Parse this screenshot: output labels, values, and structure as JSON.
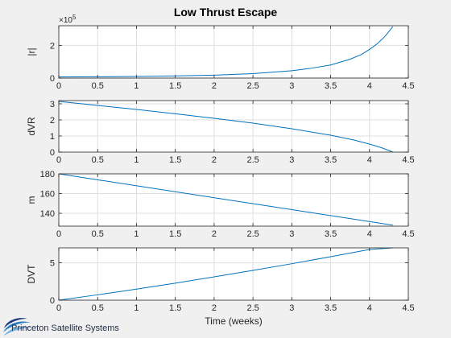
{
  "figure": {
    "title": "Low Thrust Escape",
    "background": "#f0f0f0",
    "line_color": "#0072bd",
    "grid_color": "#dfdfdf"
  },
  "logo": {
    "text": "Princeton Satellite Systems",
    "colors": [
      "#1f3a7a",
      "#2a7fc4",
      "#6fb3e0"
    ]
  },
  "chart_data": [
    {
      "type": "line",
      "title": "Low Thrust Escape",
      "ylabel": "|r|",
      "xlabel": "",
      "y_exponent_label": "×10",
      "y_exponent_power": "5",
      "xlim": [
        0,
        4.5
      ],
      "ylim": [
        0,
        3.2
      ],
      "xticks": [
        0,
        0.5,
        1,
        1.5,
        2,
        2.5,
        3,
        3.5,
        4,
        4.5
      ],
      "xtick_labels": [
        "0",
        "0.5",
        "1",
        "1.5",
        "2",
        "2.5",
        "3",
        "3.5",
        "4",
        "4.5"
      ],
      "yticks": [
        0,
        2
      ],
      "ytick_labels": [
        "0",
        "2"
      ],
      "grid": true,
      "series": [
        {
          "x": [
            0,
            0.5,
            1,
            1.5,
            2,
            2.5,
            3,
            3.25,
            3.5,
            3.75,
            3.9,
            4.0,
            4.1,
            4.2,
            4.3
          ],
          "y": [
            0.07,
            0.08,
            0.1,
            0.13,
            0.18,
            0.27,
            0.45,
            0.6,
            0.8,
            1.15,
            1.45,
            1.75,
            2.1,
            2.55,
            3.15
          ]
        }
      ]
    },
    {
      "type": "line",
      "ylabel": "dVR",
      "xlabel": "",
      "xlim": [
        0,
        4.5
      ],
      "ylim": [
        0,
        3.2
      ],
      "xticks": [
        0,
        0.5,
        1,
        1.5,
        2,
        2.5,
        3,
        3.5,
        4,
        4.5
      ],
      "xtick_labels": [
        "0",
        "0.5",
        "1",
        "1.5",
        "2",
        "2.5",
        "3",
        "3.5",
        "4",
        "4.5"
      ],
      "yticks": [
        0,
        1,
        2,
        3
      ],
      "ytick_labels": [
        "0",
        "1",
        "2",
        "3"
      ],
      "grid": true,
      "series": [
        {
          "x": [
            0,
            0.5,
            1,
            1.5,
            2,
            2.5,
            3,
            3.5,
            3.8,
            4.0,
            4.15,
            4.25,
            4.3
          ],
          "y": [
            3.15,
            2.9,
            2.65,
            2.38,
            2.1,
            1.8,
            1.45,
            1.05,
            0.75,
            0.5,
            0.28,
            0.1,
            0.0
          ]
        }
      ]
    },
    {
      "type": "line",
      "ylabel": "m",
      "xlabel": "",
      "xlim": [
        0,
        4.5
      ],
      "ylim": [
        127,
        180
      ],
      "xticks": [
        0,
        0.5,
        1,
        1.5,
        2,
        2.5,
        3,
        3.5,
        4,
        4.5
      ],
      "xtick_labels": [
        "0",
        "0.5",
        "1",
        "1.5",
        "2",
        "2.5",
        "3",
        "3.5",
        "4",
        "4.5"
      ],
      "yticks": [
        140,
        160,
        180
      ],
      "ytick_labels": [
        "140",
        "160",
        "180"
      ],
      "grid": true,
      "series": [
        {
          "x": [
            0,
            4.3
          ],
          "y": [
            180,
            128
          ]
        }
      ]
    },
    {
      "type": "line",
      "ylabel": "DVT",
      "xlabel": "Time (weeks)",
      "xlim": [
        0,
        4.5
      ],
      "ylim": [
        0,
        7
      ],
      "xticks": [
        0,
        0.5,
        1,
        1.5,
        2,
        2.5,
        3,
        3.5,
        4,
        4.5
      ],
      "xtick_labels": [
        "0",
        "0.5",
        "1",
        "1.5",
        "2",
        "2.5",
        "3",
        "3.5",
        "4",
        "4.5"
      ],
      "yticks": [
        0,
        5
      ],
      "ytick_labels": [
        "0",
        "5"
      ],
      "grid": true,
      "series": [
        {
          "x": [
            0,
            0.5,
            1,
            1.5,
            2,
            2.5,
            3,
            3.5,
            4,
            4.3
          ],
          "y": [
            0,
            0.72,
            1.48,
            2.28,
            3.12,
            3.98,
            4.88,
            5.82,
            6.78,
            7.0
          ]
        }
      ]
    }
  ]
}
